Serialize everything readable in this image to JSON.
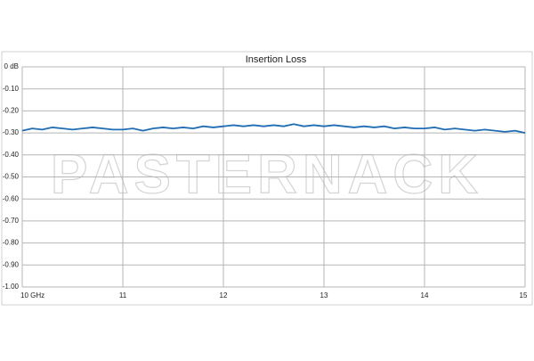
{
  "chart_data": {
    "type": "line",
    "title": "Insertion Loss",
    "watermark": "PASTERNACK",
    "x": [
      10,
      10.1,
      10.2,
      10.3,
      10.4,
      10.5,
      10.6,
      10.7,
      10.8,
      10.9,
      11,
      11.1,
      11.2,
      11.3,
      11.4,
      11.5,
      11.6,
      11.7,
      11.8,
      11.9,
      12,
      12.1,
      12.2,
      12.3,
      12.4,
      12.5,
      12.6,
      12.7,
      12.8,
      12.9,
      13,
      13.1,
      13.2,
      13.3,
      13.4,
      13.5,
      13.6,
      13.7,
      13.8,
      13.9,
      14,
      14.1,
      14.2,
      14.3,
      14.4,
      14.5,
      14.6,
      14.7,
      14.8,
      14.9,
      15
    ],
    "values": [
      -0.29,
      -0.28,
      -0.285,
      -0.275,
      -0.28,
      -0.285,
      -0.28,
      -0.275,
      -0.28,
      -0.285,
      -0.285,
      -0.28,
      -0.29,
      -0.28,
      -0.275,
      -0.28,
      -0.275,
      -0.28,
      -0.27,
      -0.275,
      -0.27,
      -0.265,
      -0.27,
      -0.265,
      -0.27,
      -0.265,
      -0.27,
      -0.26,
      -0.27,
      -0.265,
      -0.27,
      -0.265,
      -0.27,
      -0.275,
      -0.27,
      -0.275,
      -0.27,
      -0.28,
      -0.275,
      -0.28,
      -0.28,
      -0.275,
      -0.285,
      -0.28,
      -0.285,
      -0.29,
      -0.285,
      -0.29,
      -0.295,
      -0.29,
      -0.3
    ],
    "color": "#1f6db5",
    "xlim": [
      10,
      15
    ],
    "xticks": [
      {
        "value": 10,
        "label": "10 GHz"
      },
      11,
      12,
      13,
      14,
      15
    ],
    "ylim": [
      -1,
      0
    ],
    "yticks": [
      {
        "value": 0,
        "label": "0 dB"
      },
      {
        "value": -0.1,
        "label": "-0.10"
      },
      {
        "value": -0.2,
        "label": "-0.20"
      },
      {
        "value": -0.3,
        "label": "-0.30"
      },
      {
        "value": -0.4,
        "label": "-0.40"
      },
      {
        "value": -0.5,
        "label": "-0.50"
      },
      {
        "value": -0.6,
        "label": "-0.60"
      },
      {
        "value": -0.7,
        "label": "-0.70"
      },
      {
        "value": -0.8,
        "label": "-0.80"
      },
      {
        "value": -0.9,
        "label": "-0.90"
      },
      {
        "value": -1,
        "label": "-1.00"
      }
    ],
    "grid": true
  }
}
